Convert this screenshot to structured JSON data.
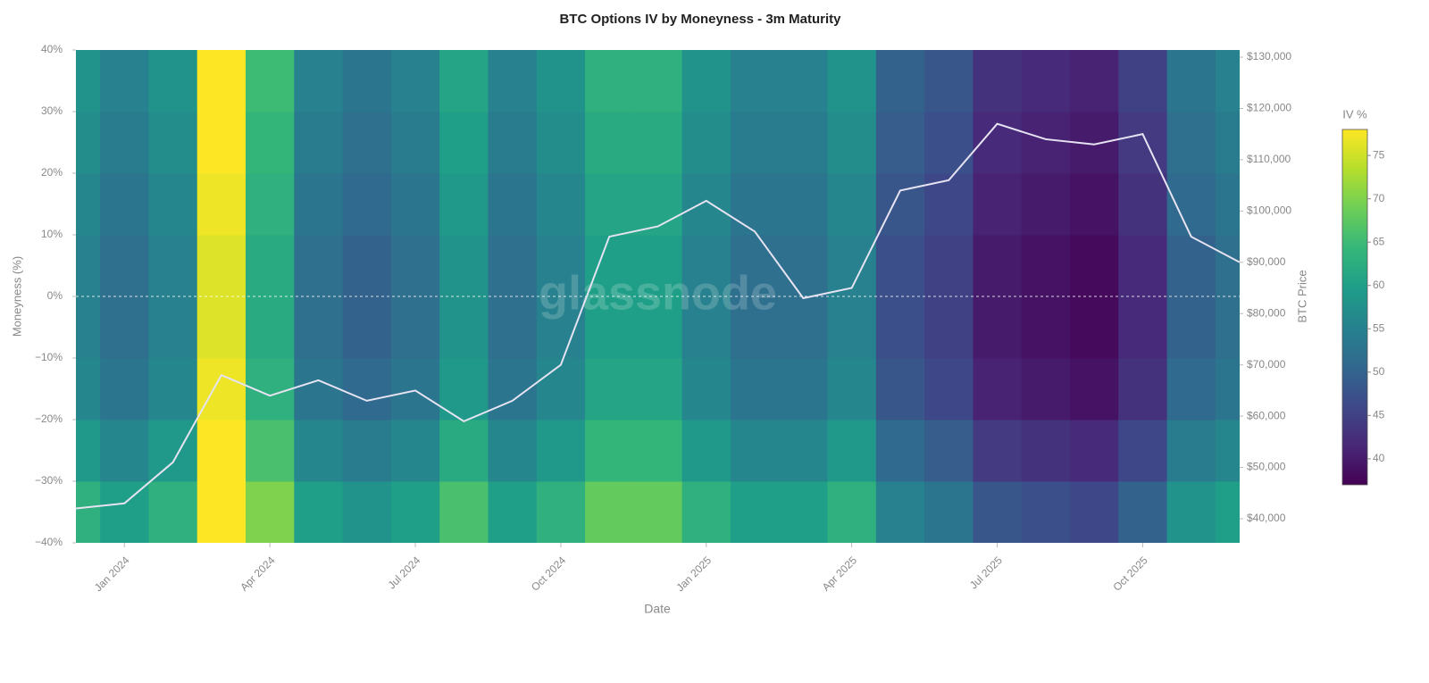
{
  "chart_data": {
    "type": "heatmap",
    "title": "BTC Options IV by Moneyness - 3m Maturity",
    "x_label": "Date",
    "y_label": "Moneyness (%)",
    "y2_label": "BTC Price",
    "watermark": "glassnode",
    "x": [
      "2023-12",
      "2024-01",
      "2024-02",
      "2024-03",
      "2024-04",
      "2024-05",
      "2024-06",
      "2024-07",
      "2024-08",
      "2024-09",
      "2024-10",
      "2024-11",
      "2024-12",
      "2025-01",
      "2025-02",
      "2025-03",
      "2025-04",
      "2025-05",
      "2025-06",
      "2025-07",
      "2025-08",
      "2025-09",
      "2025-10",
      "2025-11",
      "2025-12"
    ],
    "xlim": [
      "2023-12",
      "2025-12"
    ],
    "xticks": [
      {
        "value": "2024-01",
        "label": "Jan 2024"
      },
      {
        "value": "2024-04",
        "label": "Apr 2024"
      },
      {
        "value": "2024-07",
        "label": "Jul 2024"
      },
      {
        "value": "2024-10",
        "label": "Oct 2024"
      },
      {
        "value": "2025-01",
        "label": "Jan 2025"
      },
      {
        "value": "2025-04",
        "label": "Apr 2025"
      },
      {
        "value": "2025-07",
        "label": "Jul 2025"
      },
      {
        "value": "2025-10",
        "label": "Oct 2025"
      }
    ],
    "y": [
      -35,
      -25,
      -15,
      -5,
      5,
      15,
      25,
      35
    ],
    "ylim": [
      -40,
      40
    ],
    "yticks": [
      {
        "value": -40,
        "label": "−40%"
      },
      {
        "value": -30,
        "label": "−30%"
      },
      {
        "value": -20,
        "label": "−20%"
      },
      {
        "value": -10,
        "label": "−10%"
      },
      {
        "value": 0,
        "label": "0%"
      },
      {
        "value": 10,
        "label": "10%"
      },
      {
        "value": 20,
        "label": "20%"
      },
      {
        "value": 30,
        "label": "30%"
      },
      {
        "value": 40,
        "label": "40%"
      }
    ],
    "z": [
      [
        63,
        60,
        63,
        78,
        70,
        60,
        58,
        60,
        66,
        60,
        63,
        68,
        68,
        63,
        60,
        60,
        63,
        55,
        53,
        48,
        47,
        46,
        50,
        58,
        60
      ],
      [
        59,
        56,
        59,
        78,
        66,
        56,
        54,
        56,
        62,
        56,
        59,
        64,
        64,
        59,
        56,
        56,
        59,
        51,
        49,
        44,
        43,
        42,
        46,
        54,
        56
      ],
      [
        56,
        53,
        56,
        77,
        63,
        53,
        51,
        53,
        59,
        53,
        56,
        61,
        61,
        56,
        53,
        53,
        56,
        48,
        46,
        41,
        40,
        39,
        43,
        51,
        53
      ],
      [
        55,
        52,
        55,
        76,
        62,
        52,
        50,
        52,
        58,
        52,
        55,
        60,
        60,
        55,
        52,
        52,
        55,
        47,
        45,
        40,
        39,
        38,
        42,
        50,
        52
      ],
      [
        55,
        52,
        55,
        76,
        62,
        52,
        50,
        52,
        58,
        52,
        55,
        60,
        60,
        55,
        52,
        52,
        55,
        47,
        45,
        40,
        39,
        38,
        42,
        50,
        52
      ],
      [
        56,
        53,
        56,
        77,
        63,
        53,
        51,
        53,
        59,
        53,
        56,
        61,
        61,
        56,
        53,
        53,
        56,
        48,
        46,
        41,
        40,
        39,
        43,
        51,
        53
      ],
      [
        57,
        54,
        57,
        78,
        64,
        54,
        52,
        54,
        60,
        54,
        57,
        62,
        62,
        57,
        54,
        54,
        57,
        49,
        47,
        42,
        41,
        40,
        44,
        52,
        54
      ],
      [
        58,
        55,
        58,
        78,
        65,
        55,
        53,
        55,
        61,
        55,
        58,
        63,
        63,
        58,
        55,
        55,
        58,
        50,
        48,
        43,
        42,
        41,
        45,
        53,
        55
      ]
    ],
    "zlim": [
      37,
      78
    ],
    "colorscale": [
      "#440154",
      "#482878",
      "#3e4989",
      "#31688e",
      "#26828e",
      "#1f9e89",
      "#35b779",
      "#6ece58",
      "#b5de2b",
      "#fde725"
    ],
    "colorbar_title": "IV %",
    "colorbar_ticks": [
      40,
      45,
      50,
      55,
      60,
      65,
      70,
      75
    ],
    "reference_line": {
      "y": 0,
      "color": "#ffffff"
    },
    "series": [
      {
        "color": "#e6e3f2",
        "axis": "y2",
        "values": [
          42000,
          43000,
          51000,
          68000,
          64000,
          67000,
          63000,
          65000,
          59000,
          63000,
          70000,
          95000,
          97000,
          102000,
          96000,
          83000,
          85000,
          104000,
          106000,
          117000,
          114000,
          113000,
          115000,
          95000,
          90000
        ]
      }
    ],
    "y2lim": [
      35300,
      131400
    ],
    "y2ticks": [
      {
        "value": 40000,
        "label": "$40,000"
      },
      {
        "value": 50000,
        "label": "$50,000"
      },
      {
        "value": 60000,
        "label": "$60,000"
      },
      {
        "value": 70000,
        "label": "$70,000"
      },
      {
        "value": 80000,
        "label": "$80,000"
      },
      {
        "value": 90000,
        "label": "$90,000"
      },
      {
        "value": 100000,
        "label": "$100,000"
      },
      {
        "value": 110000,
        "label": "$110,000"
      },
      {
        "value": 120000,
        "label": "$120,000"
      },
      {
        "value": 130000,
        "label": "$130,000"
      }
    ]
  }
}
